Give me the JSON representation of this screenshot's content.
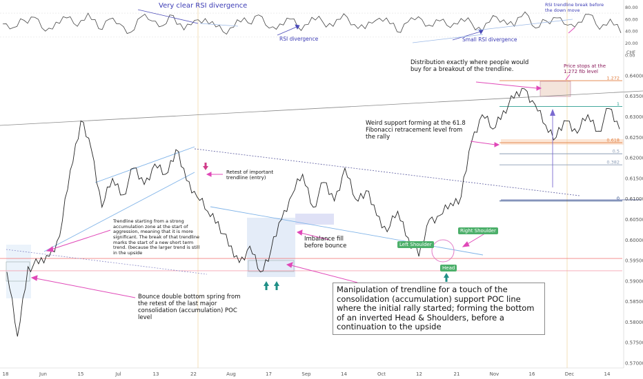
{
  "chart_data": {
    "type": "line",
    "instrument_unit": "CHF",
    "price_axis": {
      "ticks": [
        "0.64000",
        "0.63500",
        "0.63000",
        "0.62500",
        "0.62000",
        "0.61500",
        "0.61000",
        "0.60500",
        "0.60000",
        "0.59500",
        "0.59000",
        "0.58500",
        "0.58000",
        "0.57500",
        "0.57000"
      ],
      "ylim": [
        0.5695,
        0.6425
      ]
    },
    "rsi_axis": {
      "ticks": [
        "80.00",
        "60.00",
        "40.00",
        "20.00",
        "0.00"
      ],
      "ylim": [
        0,
        85
      ]
    },
    "x_ticks": [
      "18",
      "Jun",
      "15",
      "Jul",
      "13",
      "22",
      "Aug",
      "17",
      "Sep",
      "14",
      "Oct",
      "12",
      "21",
      "Nov",
      "16",
      "Dec",
      "14"
    ],
    "price_series": [
      {
        "t": 0,
        "y": 0.5922
      },
      {
        "t": 1,
        "y": 0.5765
      },
      {
        "t": 2,
        "y": 0.5935
      },
      {
        "t": 3,
        "y": 0.5942
      },
      {
        "t": 4,
        "y": 0.596
      },
      {
        "t": 5,
        "y": 0.601
      },
      {
        "t": 6,
        "y": 0.617
      },
      {
        "t": 7,
        "y": 0.629
      },
      {
        "t": 8,
        "y": 0.622
      },
      {
        "t": 9,
        "y": 0.608
      },
      {
        "t": 10,
        "y": 0.615
      },
      {
        "t": 11,
        "y": 0.611
      },
      {
        "t": 12,
        "y": 0.6175
      },
      {
        "t": 13,
        "y": 0.6135
      },
      {
        "t": 14,
        "y": 0.6185
      },
      {
        "t": 15,
        "y": 0.616
      },
      {
        "t": 16,
        "y": 0.622
      },
      {
        "t": 17,
        "y": 0.6145
      },
      {
        "t": 18,
        "y": 0.6105
      },
      {
        "t": 19,
        "y": 0.607
      },
      {
        "t": 20,
        "y": 0.6045
      },
      {
        "t": 21,
        "y": 0.5985
      },
      {
        "t": 22,
        "y": 0.5945
      },
      {
        "t": 23,
        "y": 0.5985
      },
      {
        "t": 24,
        "y": 0.5922
      },
      {
        "t": 25,
        "y": 0.5975
      },
      {
        "t": 26,
        "y": 0.605
      },
      {
        "t": 27,
        "y": 0.611
      },
      {
        "t": 28,
        "y": 0.616
      },
      {
        "t": 29,
        "y": 0.608
      },
      {
        "t": 30,
        "y": 0.614
      },
      {
        "t": 31,
        "y": 0.6095
      },
      {
        "t": 32,
        "y": 0.6175
      },
      {
        "t": 33,
        "y": 0.61
      },
      {
        "t": 34,
        "y": 0.612
      },
      {
        "t": 35,
        "y": 0.606
      },
      {
        "t": 36,
        "y": 0.602
      },
      {
        "t": 37,
        "y": 0.607
      },
      {
        "t": 38,
        "y": 0.6005
      },
      {
        "t": 39,
        "y": 0.596
      },
      {
        "t": 40,
        "y": 0.605
      },
      {
        "t": 41,
        "y": 0.606
      },
      {
        "t": 42,
        "y": 0.609
      },
      {
        "t": 43,
        "y": 0.6105
      },
      {
        "t": 44,
        "y": 0.624
      },
      {
        "t": 45,
        "y": 0.6305
      },
      {
        "t": 46,
        "y": 0.627
      },
      {
        "t": 47,
        "y": 0.6315
      },
      {
        "t": 48,
        "y": 0.6345
      },
      {
        "t": 49,
        "y": 0.6368
      },
      {
        "t": 50,
        "y": 0.633
      },
      {
        "t": 51,
        "y": 0.628
      },
      {
        "t": 52,
        "y": 0.625
      },
      {
        "t": 53,
        "y": 0.629
      },
      {
        "t": 54,
        "y": 0.626
      },
      {
        "t": 55,
        "y": 0.6305
      },
      {
        "t": 56,
        "y": 0.6265
      },
      {
        "t": 57,
        "y": 0.632
      },
      {
        "t": 58,
        "y": 0.627
      }
    ],
    "rsi_series": [
      52,
      46,
      58,
      63,
      40,
      55,
      62,
      48,
      70,
      44,
      60,
      52,
      38,
      64,
      57,
      49,
      66,
      42,
      58,
      61,
      47,
      35,
      59,
      54,
      67,
      45,
      52,
      60,
      41,
      63,
      56,
      48,
      69,
      51,
      44,
      58,
      62,
      39,
      55,
      64,
      50,
      57,
      46,
      61,
      53,
      40,
      66,
      59,
      48,
      72,
      45,
      57,
      62,
      50,
      55,
      68,
      43,
      60,
      37
    ],
    "levels": [
      {
        "label": "1.272",
        "y": 0.6388,
        "color": "#e07b3c"
      },
      {
        "label": "1",
        "y": 0.6325,
        "color": "#2a9d8f"
      },
      {
        "label": "0.618",
        "y": 0.6237,
        "color": "#e07b3c"
      },
      {
        "label": "0.5",
        "y": 0.621,
        "color": "#8a9bb5"
      },
      {
        "label": "0.382",
        "y": 0.6183,
        "color": "#8a9bb5"
      },
      {
        "label": "0",
        "y": 0.6095,
        "color": "#1f3f7f"
      }
    ],
    "hlines": [
      {
        "name": "poc-line-red",
        "y": 0.5955,
        "color": "#f08080"
      },
      {
        "name": "support-line-pink",
        "y": 0.5925,
        "color": "#f4a0b0"
      }
    ],
    "annotations": {
      "rsi_very_clear": "Very clear RSI divergence",
      "rsi_divergence": "RSI divergence",
      "small_rsi_divergence": "Small RSI divergence",
      "rsi_trendline_break": "RSI trendline break before the down move",
      "distribution": "Distribution exactly where people would buy for a breakout of the trendline.",
      "price_stops": "Price stops at the 1.272 fib level",
      "weird_support": "Weird support forming at the 61.8 Fibonacci retracement level from the rally",
      "retest": "Retest of important trendline (entry)",
      "trendline_note": "Trendline starting from a strong accumulation zone at the start of aggression, meaning that it is more significant. The break of that trendline marks the start of a new short term trend. (because the larger trend is still in the upside",
      "imbalance": "Imbalance fill before bounce",
      "bounce": "Bounce double bottom spring from the retest of the last major consolidation (accumulation) POC level",
      "manipulation": "Manipulation of trendline for a touch of the consolidation (accumulation) support POC line where the initial rally started; forming the bottom of an inverted Head & Shoulders, before a continuation to the upside",
      "left_shoulder": "Left Shoulder",
      "right_shoulder": "Right Shoulder",
      "head": "Head"
    }
  }
}
